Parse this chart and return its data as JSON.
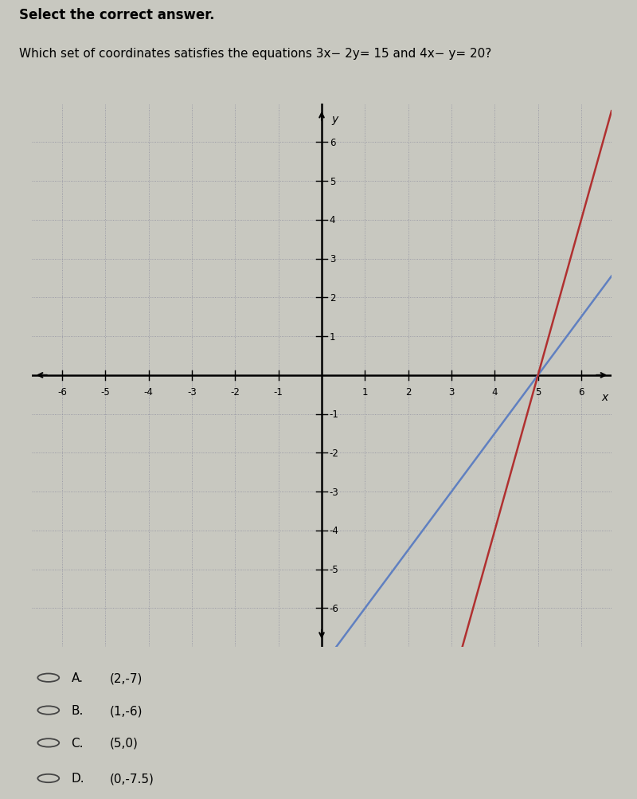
{
  "title_bold": "Select the correct answer.",
  "question": "Which set of coordinates satisfies the equations 3x− 2y= 15 and 4x− y= 20?",
  "xlim": [
    -6.7,
    6.7
  ],
  "ylim": [
    -7.0,
    7.0
  ],
  "xtick_vals": [
    -6,
    -5,
    -4,
    -3,
    -2,
    -1,
    1,
    2,
    3,
    4,
    5,
    6
  ],
  "ytick_vals": [
    -6,
    -5,
    -4,
    -3,
    -2,
    -1,
    1,
    2,
    3,
    4,
    5,
    6
  ],
  "line_red_color": "#b03030",
  "line_blue_color": "#6080c0",
  "bg_color": "#c8c8c0",
  "plot_bg": "#b8bdb8",
  "grid_color": "#9090a0",
  "choices": [
    "A.",
    "B.",
    "C.",
    "D."
  ],
  "choice_coords": [
    "(2,-7)",
    "(1,-6)",
    "(5,0)",
    "(0,-7.5)"
  ]
}
